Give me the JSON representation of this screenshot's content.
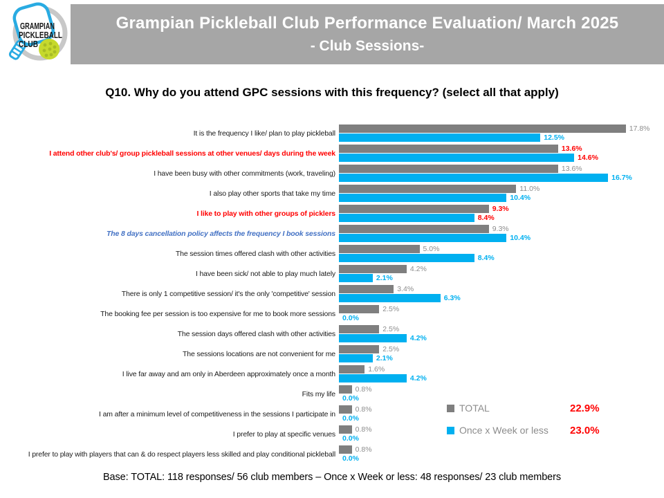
{
  "header": {
    "title_line1": "Grampian Pickleball Club Performance Evaluation/ March 2025",
    "title_line2": "- Club Sessions-",
    "bg_color": "#A6A6A6",
    "text_color": "#FFFFFF"
  },
  "logo": {
    "line1": "GRAMPIAN",
    "line2": "PICKLEBALL",
    "line3": "CLUB",
    "paddle_color": "#29ABE2",
    "ball_color": "#C6D92D",
    "swoosh_color": "#C8C8C8"
  },
  "question_title": "Q10. Why do you attend GPC sessions with this frequency? (select all that apply)",
  "chart_data": {
    "type": "bar",
    "orientation": "horizontal",
    "value_suffix": "%",
    "xlim": [
      0,
      20
    ],
    "grid": false,
    "value_labels": true,
    "legend_position": "bottom-right",
    "categories": [
      "It is the frequency I like/ plan to play pickleball",
      "I attend other club's/ group pickleball sessions at other venues/ days during the week",
      "I have been busy with other commitments (work, traveling)",
      "I also play other sports that take my time",
      "I like to play with other groups of picklers",
      "The 8 days cancellation policy affects the frequency I book sessions",
      "The session times offered clash with other activities",
      "I have been sick/ not able to play much lately",
      "There is only 1 competitive session/ it's the only 'competitive' session",
      "The booking fee per session is too expensive for me to book more sessions",
      "The session days offered clash with other activities",
      "The sessions locations are not convenient for me",
      "I live far away and am only in Aberdeen approximately once a month",
      "Fits my life",
      "I am after a minimum level of competitiveness in the sessions I participate in",
      "I prefer to play at specific venues",
      "I prefer to play with players that can & do respect players less skilled and play conditional pickleball"
    ],
    "category_styles": [
      "normal",
      "red-bold",
      "normal",
      "normal",
      "red-bold",
      "blue-bold-italic",
      "normal",
      "normal",
      "normal",
      "normal",
      "normal",
      "normal",
      "normal",
      "normal",
      "normal",
      "normal",
      "normal"
    ],
    "series": [
      {
        "name": "TOTAL",
        "color": "#7F7F7F",
        "values": [
          17.8,
          13.6,
          13.6,
          11.0,
          9.3,
          9.3,
          5.0,
          4.2,
          3.4,
          2.5,
          2.5,
          2.5,
          1.6,
          0.8,
          0.8,
          0.8,
          0.8
        ]
      },
      {
        "name": "Once x Week or less",
        "color": "#00B0F0",
        "values": [
          12.5,
          14.6,
          16.7,
          10.4,
          8.4,
          10.4,
          8.4,
          2.1,
          6.3,
          0.0,
          4.2,
          2.1,
          4.2,
          0.0,
          0.0,
          0.0,
          0.0
        ]
      }
    ]
  },
  "legend": {
    "items": [
      {
        "label": "TOTAL",
        "swatch": "#7F7F7F",
        "value": "22.9%"
      },
      {
        "label": "Once x Week or less",
        "swatch": "#00B0F0",
        "value": "23.0%"
      }
    ],
    "value_color": "#FF0000"
  },
  "footer": "Base: TOTAL: 118 responses/ 56 club members – Once x Week or less: 48 responses/ 23 club members",
  "style_colors": {
    "red_highlight": "#FF0000",
    "blue_italic_highlight": "#4472C4",
    "gray_value_label": "#8C8C8C"
  }
}
